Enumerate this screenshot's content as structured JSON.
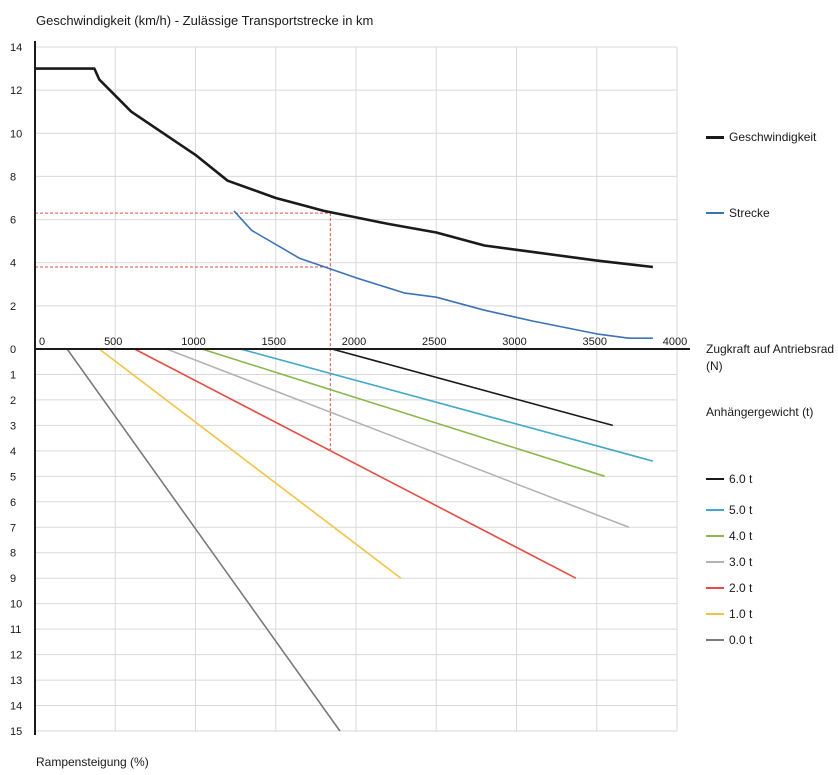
{
  "title": "Geschwindigkeit (km/h) - Zulässige Transportstrecke in km",
  "x_axis_label": "Zugkraft auf Antriebsrad (N)",
  "trailer_legend_title": "Anhängergewicht (t)",
  "lower_axis_label": "Rampensteigung (%)",
  "chart_data": {
    "type": "line",
    "x_ticks": [
      "0",
      "500",
      "1000",
      "1500",
      "2000",
      "2500",
      "3000",
      "3500",
      "4000"
    ],
    "x_range": [
      0,
      4000
    ],
    "upper": {
      "y_ticks": [
        "0",
        "2",
        "4",
        "6",
        "8",
        "10",
        "12",
        "14"
      ],
      "y_range": [
        0,
        14
      ],
      "series": [
        {
          "name": "Geschwindigkeit",
          "color": "#1a1a1a",
          "points": [
            [
              0,
              13
            ],
            [
              370,
              13
            ],
            [
              400,
              12.5
            ],
            [
              600,
              11
            ],
            [
              800,
              10
            ],
            [
              1000,
              9
            ],
            [
              1200,
              7.8
            ],
            [
              1500,
              7
            ],
            [
              1600,
              6.8
            ],
            [
              1800,
              6.4
            ],
            [
              2000,
              6.1
            ],
            [
              2200,
              5.8
            ],
            [
              2500,
              5.4
            ],
            [
              2800,
              4.8
            ],
            [
              3100,
              4.5
            ],
            [
              3500,
              4.1
            ],
            [
              3850,
              3.8
            ]
          ]
        },
        {
          "name": "Strecke",
          "color": "#3b73b9",
          "points": [
            [
              1240,
              6.4
            ],
            [
              1350,
              5.5
            ],
            [
              1650,
              4.2
            ],
            [
              2000,
              3.3
            ],
            [
              2300,
              2.6
            ],
            [
              2500,
              2.4
            ],
            [
              2800,
              1.8
            ],
            [
              3100,
              1.3
            ],
            [
              3500,
              0.7
            ],
            [
              3700,
              0.5
            ],
            [
              3850,
              0.5
            ]
          ]
        }
      ]
    },
    "lower": {
      "y_ticks": [
        "0",
        "1",
        "2",
        "3",
        "4",
        "5",
        "6",
        "7",
        "8",
        "9",
        "10",
        "11",
        "12",
        "13",
        "14",
        "15"
      ],
      "y_range": [
        0,
        15
      ],
      "series": [
        {
          "name": "6.0 t",
          "color": "#1a1a1a",
          "points": [
            [
              1850,
              0
            ],
            [
              3600,
              3
            ]
          ]
        },
        {
          "name": "5.0 t",
          "color": "#42a8c8",
          "points": [
            [
              1280,
              0
            ],
            [
              3850,
              4.4
            ]
          ]
        },
        {
          "name": "4.0 t",
          "color": "#8ab84a",
          "points": [
            [
              1040,
              0
            ],
            [
              3550,
              5
            ]
          ]
        },
        {
          "name": "3.0 t",
          "color": "#b3b3b3",
          "points": [
            [
              820,
              0
            ],
            [
              3700,
              7
            ]
          ]
        },
        {
          "name": "2.0 t",
          "color": "#e54d43",
          "points": [
            [
              620,
              0
            ],
            [
              3370,
              9
            ]
          ]
        },
        {
          "name": "1.0 t",
          "color": "#f2c444",
          "points": [
            [
              400,
              0
            ],
            [
              2280,
              9
            ]
          ]
        },
        {
          "name": "0.0 t",
          "color": "#7a7a7a",
          "points": [
            [
              200,
              0
            ],
            [
              1900,
              15
            ]
          ]
        }
      ]
    },
    "annotation": {
      "color": "#e54d43",
      "x": 1840,
      "speed": 6.3,
      "distance": 3.8,
      "slope": 4.1
    }
  }
}
